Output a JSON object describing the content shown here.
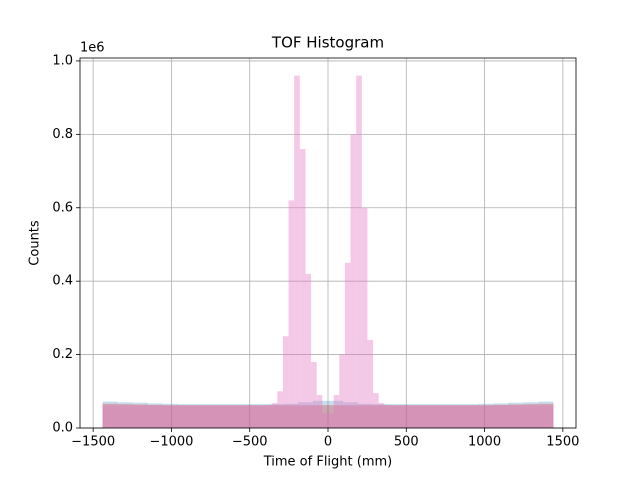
{
  "chart_data": {
    "type": "histogram",
    "title": "TOF Histogram",
    "x_label": "Time of Flight (mm)",
    "y_label": "Counts",
    "y_offset_label": "1e6",
    "xlim": [
      -1584,
      1584
    ],
    "ylim": [
      0,
      1008000
    ],
    "grid": true,
    "xticks": [
      {
        "value": -1500,
        "label": "−1500"
      },
      {
        "value": -1000,
        "label": "−1000"
      },
      {
        "value": -500,
        "label": "−500"
      },
      0,
      500,
      1000,
      1500
    ],
    "yticks": [
      {
        "value": 0,
        "label": "0.0"
      },
      {
        "value": 200000,
        "label": "0.2"
      },
      {
        "value": 400000,
        "label": "0.4"
      },
      {
        "value": 600000,
        "label": "0.6"
      },
      {
        "value": 800000,
        "label": "0.8"
      },
      {
        "value": 1000000,
        "label": "1.0"
      }
    ],
    "series": [
      {
        "color": "#1f77b4",
        "alpha": 0.25,
        "bins": [
          -1440,
          -1344,
          -1248,
          -1152,
          -1056,
          -960,
          -864,
          -768,
          -672,
          -576,
          -480,
          -384,
          -288,
          -192,
          -96,
          0,
          96,
          192,
          288,
          384,
          480,
          576,
          672,
          768,
          864,
          960,
          1056,
          1152,
          1248,
          1344,
          1440
        ],
        "values": [
          72000,
          70000,
          69000,
          67000,
          66000,
          65000,
          65000,
          65000,
          65000,
          65000,
          65000,
          65000,
          66000,
          70000,
          74000,
          74000,
          70000,
          66000,
          65000,
          65000,
          65000,
          65000,
          65000,
          65000,
          65000,
          66000,
          67000,
          69000,
          70000,
          72000
        ]
      },
      {
        "color": "#d62728",
        "alpha": 0.3,
        "bins": [
          -1440,
          -1344,
          -1248,
          -1152,
          -1056,
          -960,
          -864,
          -768,
          -672,
          -576,
          -480,
          -384,
          -288,
          -192,
          -96,
          0,
          96,
          192,
          288,
          384,
          480,
          576,
          672,
          768,
          864,
          960,
          1056,
          1152,
          1248,
          1344,
          1440
        ],
        "values": [
          66000,
          65000,
          64000,
          63000,
          62000,
          62000,
          62000,
          62000,
          62000,
          62000,
          62000,
          62000,
          62000,
          62000,
          62000,
          62000,
          62000,
          62000,
          62000,
          62000,
          62000,
          62000,
          62000,
          62000,
          62000,
          62000,
          63000,
          64000,
          65000,
          66000
        ]
      },
      {
        "color": "#e377c2",
        "alpha": 0.4,
        "bins": [
          -1440,
          -1404,
          -1368,
          -1332,
          -1296,
          -1260,
          -1224,
          -1188,
          -1152,
          -1116,
          -1080,
          -1044,
          -1008,
          -972,
          -936,
          -900,
          -864,
          -828,
          -792,
          -756,
          -720,
          -684,
          -648,
          -612,
          -576,
          -540,
          -504,
          -468,
          -432,
          -396,
          -360,
          -324,
          -288,
          -252,
          -216,
          -180,
          -144,
          -108,
          -72,
          -36,
          0,
          36,
          72,
          108,
          144,
          180,
          216,
          252,
          288,
          324,
          360,
          396,
          432,
          468,
          504,
          540,
          576,
          612,
          648,
          684,
          720,
          756,
          792,
          828,
          864,
          900,
          936,
          972,
          1008,
          1044,
          1080,
          1116,
          1152,
          1188,
          1224,
          1260,
          1296,
          1332,
          1368,
          1404,
          1440
        ],
        "values": [
          62000,
          62000,
          62000,
          62000,
          62000,
          62000,
          62000,
          62000,
          62000,
          62000,
          62000,
          62000,
          62000,
          62000,
          62000,
          62000,
          62000,
          62000,
          62000,
          62000,
          62000,
          62000,
          62000,
          62000,
          62000,
          62000,
          62000,
          62000,
          62000,
          63000,
          68000,
          100000,
          250000,
          620000,
          960000,
          760000,
          420000,
          180000,
          90000,
          40000,
          40000,
          90000,
          200000,
          450000,
          800000,
          960000,
          600000,
          240000,
          95000,
          68000,
          63000,
          62000,
          62000,
          62000,
          62000,
          62000,
          62000,
          62000,
          62000,
          62000,
          62000,
          62000,
          62000,
          62000,
          62000,
          62000,
          62000,
          62000,
          62000,
          62000,
          62000,
          62000,
          62000,
          62000,
          62000,
          62000,
          62000,
          62000,
          62000,
          62000
        ]
      }
    ]
  }
}
